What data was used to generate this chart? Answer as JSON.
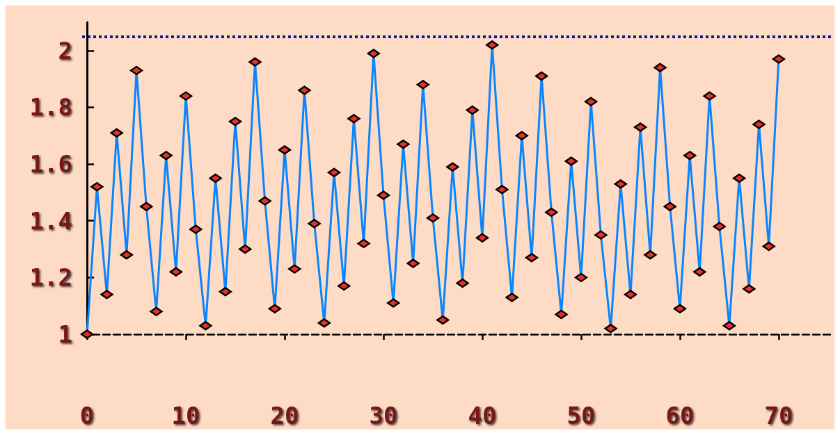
{
  "chart_data": {
    "type": "line",
    "x": [
      0,
      1,
      2,
      3,
      4,
      5,
      6,
      7,
      8,
      9,
      10,
      11,
      12,
      13,
      14,
      15,
      16,
      17,
      18,
      19,
      20,
      21,
      22,
      23,
      24,
      25,
      26,
      27,
      28,
      29,
      30,
      31,
      32,
      33,
      34,
      35,
      36,
      37,
      38,
      39,
      40,
      41,
      42,
      43,
      44,
      45,
      46,
      47,
      48,
      49,
      50,
      51,
      52,
      53,
      54,
      55,
      56,
      57,
      58,
      59,
      60,
      61,
      62,
      63,
      64,
      65,
      66,
      67,
      68,
      69,
      70
    ],
    "series": [
      {
        "color": "#0a84ff",
        "values": [
          1.0,
          1.52,
          1.14,
          1.71,
          1.28,
          1.93,
          1.45,
          1.08,
          1.63,
          1.22,
          1.84,
          1.37,
          1.03,
          1.55,
          1.15,
          1.75,
          1.3,
          1.96,
          1.47,
          1.09,
          1.65,
          1.23,
          1.86,
          1.39,
          1.04,
          1.57,
          1.17,
          1.76,
          1.32,
          1.99,
          1.49,
          1.11,
          1.67,
          1.25,
          1.88,
          1.41,
          1.05,
          1.59,
          1.18,
          1.79,
          1.34,
          2.02,
          1.51,
          1.13,
          1.7,
          1.27,
          1.91,
          1.43,
          1.07,
          1.61,
          1.2,
          1.82,
          1.35,
          1.02,
          1.53,
          1.14,
          1.73,
          1.28,
          1.94,
          1.45,
          1.09,
          1.63,
          1.22,
          1.84,
          1.38,
          1.03,
          1.55,
          1.16,
          1.74,
          1.31,
          1.97
        ]
      }
    ],
    "marker": "diamond",
    "xlim": [
      -0.5,
      75.5
    ],
    "xticks": [
      0,
      10,
      20,
      30,
      40,
      50,
      60,
      70
    ],
    "ylim": [
      1,
      2.1
    ],
    "yticks": [
      1,
      1.2,
      1.4,
      1.6,
      1.8,
      2
    ],
    "ref_lines": [
      {
        "axis": "y",
        "value": 2.05,
        "color": "#0a1a9a",
        "line_style": "dotted"
      }
    ],
    "grid": false
  }
}
